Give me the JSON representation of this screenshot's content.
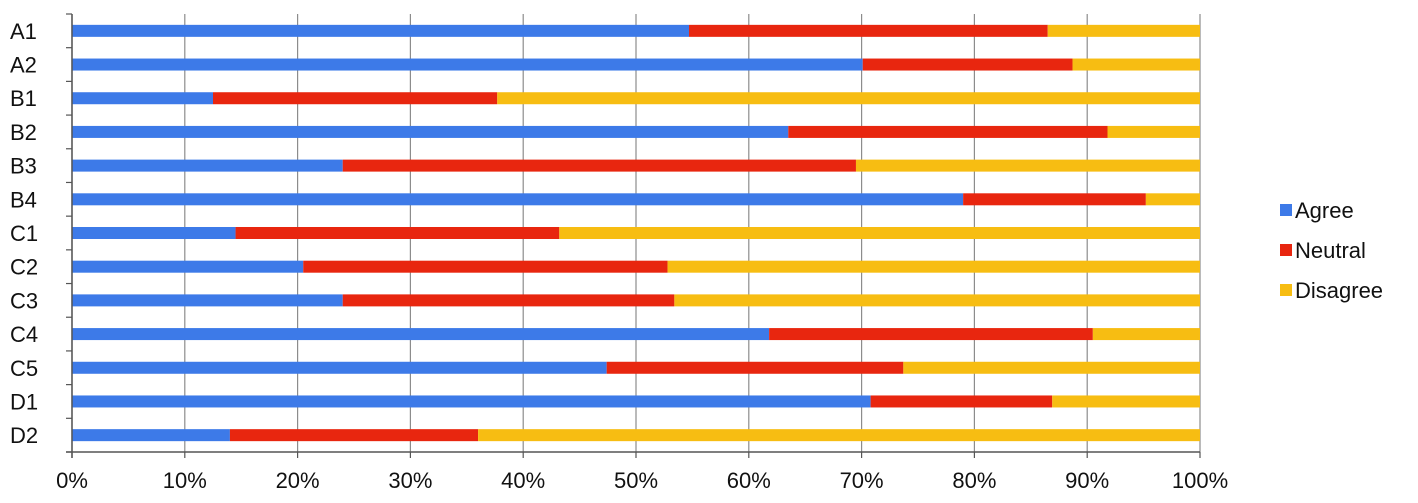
{
  "chart_data": {
    "type": "bar",
    "orientation": "horizontal",
    "stacked": "percent",
    "categories": [
      "A1",
      "A2",
      "B1",
      "B2",
      "B3",
      "B4",
      "C1",
      "C2",
      "C3",
      "C4",
      "C5",
      "D1",
      "D2"
    ],
    "series": [
      {
        "name": "Agree",
        "color": "#3d7ae8",
        "values": [
          54.7,
          70.1,
          12.5,
          63.5,
          24.0,
          79.0,
          14.5,
          20.5,
          24.0,
          61.8,
          47.4,
          70.8,
          14.0
        ]
      },
      {
        "name": "Neutral",
        "color": "#e8260f",
        "values": [
          31.8,
          18.6,
          25.2,
          28.3,
          45.5,
          16.2,
          28.7,
          32.3,
          29.4,
          28.7,
          26.3,
          16.1,
          22.0
        ]
      },
      {
        "name": "Disagree",
        "color": "#f7bd12",
        "values": [
          13.5,
          11.3,
          62.3,
          8.2,
          30.5,
          4.8,
          56.8,
          47.2,
          46.6,
          9.5,
          26.3,
          13.1,
          64.0
        ]
      }
    ],
    "x_ticks": [
      "0%",
      "10%",
      "20%",
      "30%",
      "40%",
      "50%",
      "60%",
      "70%",
      "80%",
      "90%",
      "100%"
    ],
    "xlim": [
      0,
      100
    ],
    "grid": "vertical",
    "legend": "right"
  }
}
